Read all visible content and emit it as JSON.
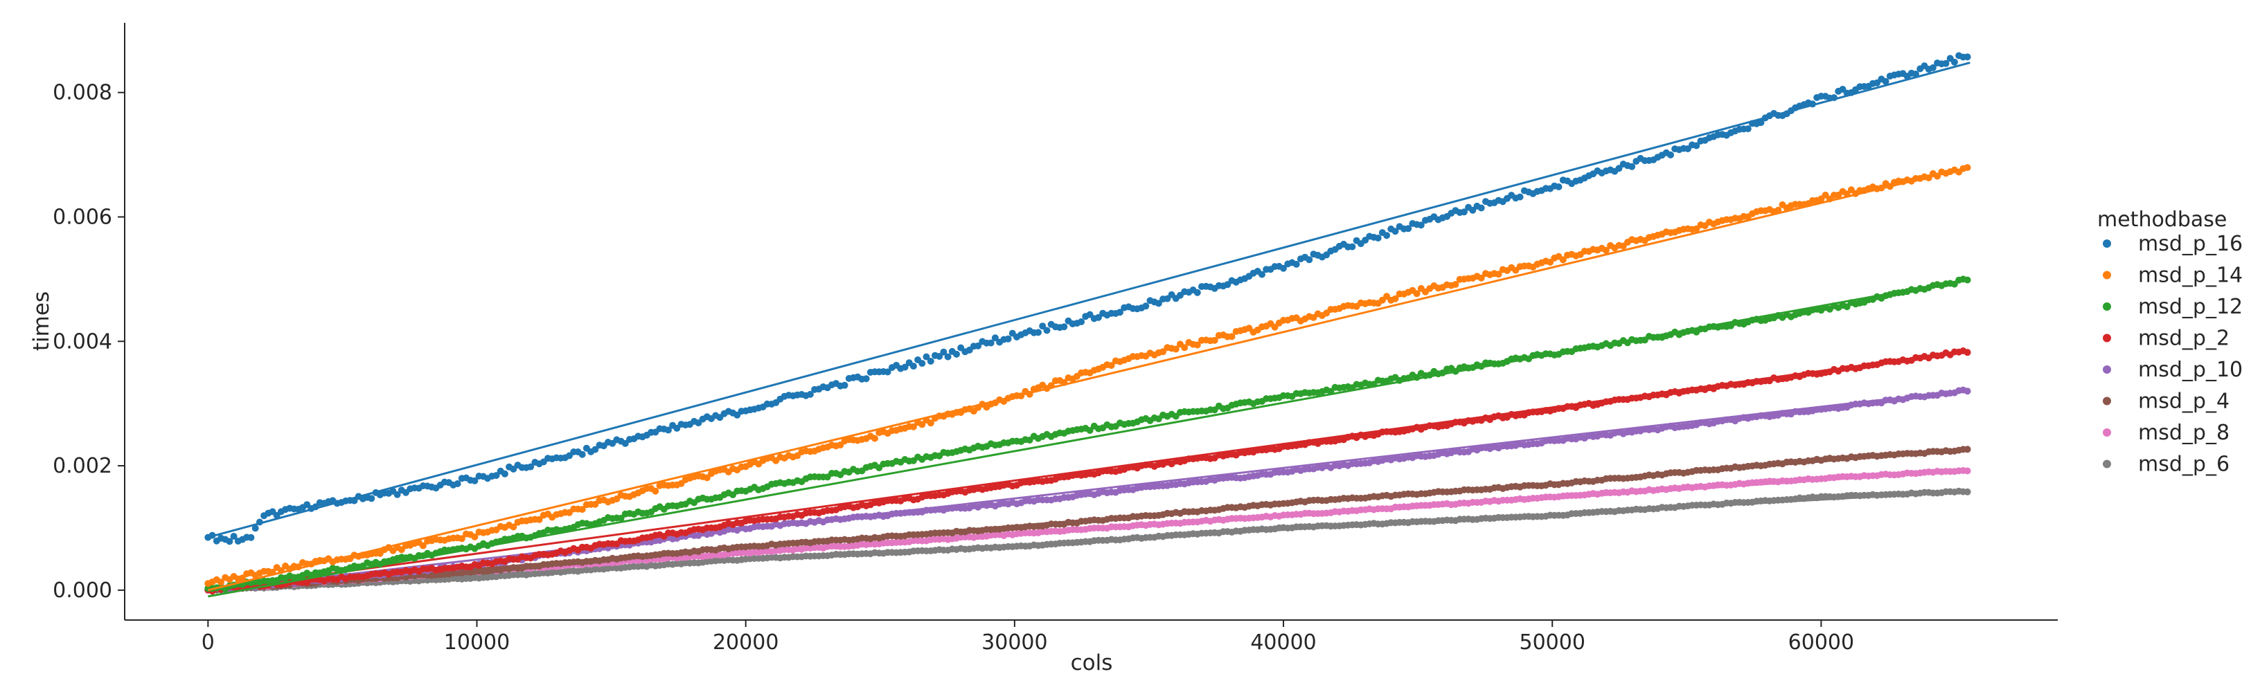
{
  "chart_data": {
    "type": "scatter",
    "xlabel": "cols",
    "ylabel": "times",
    "xlim": [
      -3100,
      68800
    ],
    "ylim": [
      -0.00048,
      0.00912
    ],
    "x_ticks": [
      0,
      10000,
      20000,
      30000,
      40000,
      50000,
      60000
    ],
    "x_tick_labels": [
      "0",
      "10000",
      "20000",
      "30000",
      "40000",
      "50000",
      "60000"
    ],
    "y_ticks": [
      0.0,
      0.002,
      0.004,
      0.006,
      0.008
    ],
    "y_tick_labels": [
      "0.000",
      "0.002",
      "0.004",
      "0.006",
      "0.008"
    ],
    "grid": false,
    "legend": {
      "title": "methodbase",
      "placement": "right"
    },
    "x_range": [
      0,
      65536
    ],
    "series": [
      {
        "name": "msd_p_16",
        "color": "#1f77b4",
        "points": [
          [
            0,
            0.00085
          ],
          [
            1500,
            0.0008
          ],
          [
            2000,
            0.0012
          ],
          [
            10000,
            0.0018
          ],
          [
            20000,
            0.0029
          ],
          [
            30000,
            0.0041
          ],
          [
            35000,
            0.0046
          ],
          [
            40000,
            0.0052
          ],
          [
            45000,
            0.0059
          ],
          [
            50000,
            0.0065
          ],
          [
            55000,
            0.0071
          ],
          [
            60000,
            0.0079
          ],
          [
            65536,
            0.0086
          ]
        ],
        "fit": [
          0.00085,
          0.00848
        ]
      },
      {
        "name": "msd_p_14",
        "color": "#ff7f0e",
        "points": [
          [
            0,
            0.0001
          ],
          [
            1500,
            0.00025
          ],
          [
            10000,
            0.0009
          ],
          [
            20000,
            0.002
          ],
          [
            25000,
            0.0025
          ],
          [
            30000,
            0.0031
          ],
          [
            34000,
            0.0037
          ],
          [
            40000,
            0.0043
          ],
          [
            45000,
            0.0048
          ],
          [
            50000,
            0.0053
          ],
          [
            55000,
            0.0058
          ],
          [
            60000,
            0.0063
          ],
          [
            65536,
            0.0068
          ]
        ],
        "fit": [
          0.0,
          0.0068
        ]
      },
      {
        "name": "msd_p_12",
        "color": "#2ca02c",
        "points": [
          [
            0,
            0.0
          ],
          [
            10000,
            0.0007
          ],
          [
            20000,
            0.0016
          ],
          [
            30000,
            0.0024
          ],
          [
            40000,
            0.0031
          ],
          [
            50000,
            0.0038
          ],
          [
            60000,
            0.0045
          ],
          [
            65536,
            0.005
          ]
        ],
        "fit": [
          -0.0001,
          0.005
        ]
      },
      {
        "name": "msd_p_2",
        "color": "#d62728",
        "points": [
          [
            0,
            0.0
          ],
          [
            10000,
            0.0004
          ],
          [
            20000,
            0.0011
          ],
          [
            30000,
            0.0017
          ],
          [
            40000,
            0.0023
          ],
          [
            50000,
            0.0029
          ],
          [
            60000,
            0.0035
          ],
          [
            65536,
            0.00385
          ]
        ],
        "fit": [
          0.0,
          0.00385
        ]
      },
      {
        "name": "msd_p_10",
        "color": "#9467bd",
        "points": [
          [
            0,
            0.0
          ],
          [
            10000,
            0.0004
          ],
          [
            20000,
            0.001
          ],
          [
            30000,
            0.0014
          ],
          [
            40000,
            0.0019
          ],
          [
            50000,
            0.0024
          ],
          [
            60000,
            0.0029
          ],
          [
            65536,
            0.00322
          ]
        ],
        "fit": [
          0.0,
          0.00322
        ]
      },
      {
        "name": "msd_p_4",
        "color": "#8c564b",
        "points": [
          [
            0,
            0.0
          ],
          [
            10000,
            0.0003
          ],
          [
            20000,
            0.0007
          ],
          [
            30000,
            0.001
          ],
          [
            40000,
            0.0014
          ],
          [
            50000,
            0.0017
          ],
          [
            60000,
            0.0021
          ],
          [
            65536,
            0.00226
          ]
        ],
        "fit": [
          0.0,
          0.00226
        ]
      },
      {
        "name": "msd_p_8",
        "color": "#e377c2",
        "points": [
          [
            0,
            0.0
          ],
          [
            10000,
            0.0003
          ],
          [
            20000,
            0.0006
          ],
          [
            30000,
            0.0009
          ],
          [
            40000,
            0.0012
          ],
          [
            50000,
            0.0015
          ],
          [
            60000,
            0.0018
          ],
          [
            65536,
            0.00193
          ]
        ],
        "fit": [
          0.0,
          0.00193
        ]
      },
      {
        "name": "msd_p_6",
        "color": "#7f7f7f",
        "points": [
          [
            0,
            0.0
          ],
          [
            10000,
            0.0002
          ],
          [
            20000,
            0.0005
          ],
          [
            30000,
            0.0007
          ],
          [
            40000,
            0.001
          ],
          [
            50000,
            0.0012
          ],
          [
            60000,
            0.0015
          ],
          [
            65536,
            0.00159
          ]
        ],
        "fit": [
          0.0,
          0.00159
        ]
      }
    ]
  }
}
